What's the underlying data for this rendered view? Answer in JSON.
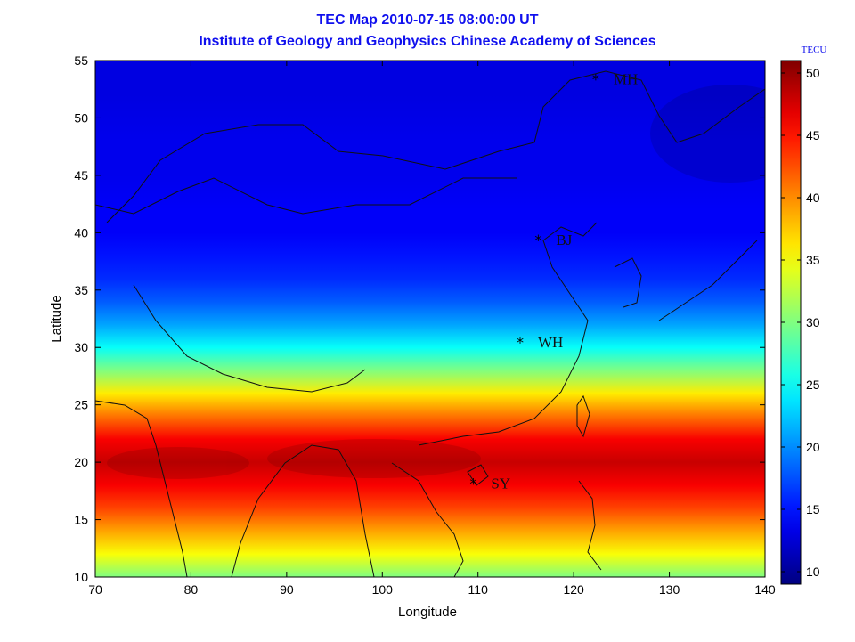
{
  "chart_data": {
    "type": "heatmap",
    "title": "TEC Map 2010-07-15 08:00:00 UT",
    "subtitle": "Institute of Geology and Geophysics Chinese Academy of Sciences",
    "xlabel": "Longitude",
    "ylabel": "Latitude",
    "xlim": [
      70,
      140
    ],
    "ylim": [
      10,
      55
    ],
    "x_ticks": [
      70,
      80,
      90,
      100,
      110,
      120,
      130,
      140
    ],
    "y_ticks": [
      10,
      15,
      20,
      25,
      30,
      35,
      40,
      45,
      50,
      55
    ],
    "colorbar": {
      "label": "TECU",
      "range": [
        9,
        51
      ],
      "ticks": [
        10,
        15,
        20,
        25,
        30,
        35,
        40,
        45,
        50
      ],
      "colormap": "jet"
    },
    "latitude_profile": [
      {
        "lat": 10,
        "tec": 30
      },
      {
        "lat": 12,
        "tec": 35
      },
      {
        "lat": 14,
        "tec": 39
      },
      {
        "lat": 16,
        "tec": 43
      },
      {
        "lat": 18,
        "tec": 46
      },
      {
        "lat": 20,
        "tec": 48
      },
      {
        "lat": 22,
        "tec": 46
      },
      {
        "lat": 24,
        "tec": 41
      },
      {
        "lat": 26,
        "tec": 36
      },
      {
        "lat": 28,
        "tec": 30
      },
      {
        "lat": 30,
        "tec": 25
      },
      {
        "lat": 32,
        "tec": 21
      },
      {
        "lat": 34,
        "tec": 18
      },
      {
        "lat": 36,
        "tec": 16
      },
      {
        "lat": 38,
        "tec": 15
      },
      {
        "lat": 40,
        "tec": 14
      },
      {
        "lat": 42,
        "tec": 14
      },
      {
        "lat": 45,
        "tec": 13.5
      },
      {
        "lat": 48,
        "tec": 13.5
      },
      {
        "lat": 52,
        "tec": 13
      },
      {
        "lat": 55,
        "tec": 13
      }
    ],
    "stations": [
      {
        "name": "MH",
        "lon": 122.3,
        "lat": 53.4
      },
      {
        "name": "BJ",
        "lon": 116.3,
        "lat": 39.4
      },
      {
        "name": "WH",
        "lon": 114.4,
        "lat": 30.5
      },
      {
        "name": "SY",
        "lon": 109.5,
        "lat": 18.2
      }
    ]
  }
}
